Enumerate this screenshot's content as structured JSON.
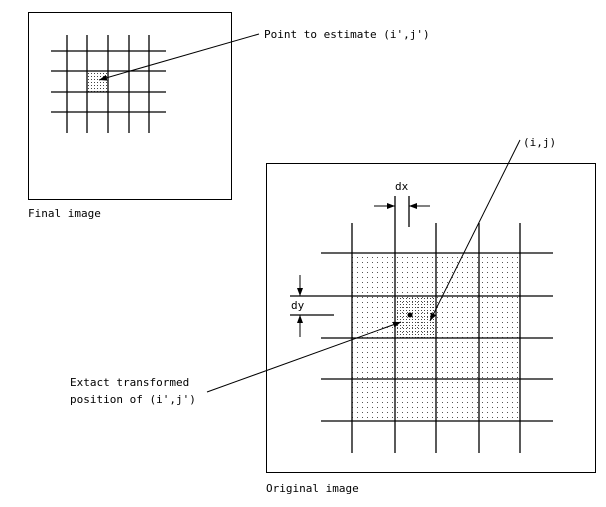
{
  "labels": {
    "point_to_estimate": "Point to estimate (i',j')",
    "final_image": "Final image",
    "original_image": "Original image",
    "ij": "(i,j)",
    "dx": "dx",
    "dy": "dy",
    "exact_line1": "Extact transformed",
    "exact_line2": "position of (i',j')"
  },
  "colors": {
    "line": "#000000",
    "background": "#ffffff"
  }
}
